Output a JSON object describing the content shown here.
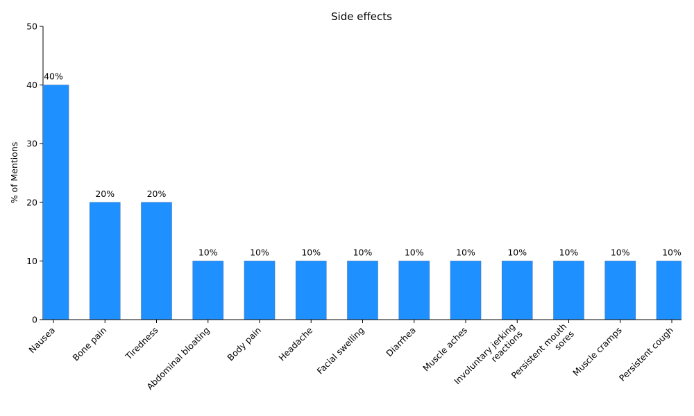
{
  "chart_data": {
    "type": "bar",
    "title": "Side effects",
    "xlabel": "",
    "ylabel": "% of Mentions",
    "ylim": [
      0,
      50
    ],
    "yticks": [
      0,
      10,
      20,
      30,
      40,
      50
    ],
    "grid": false,
    "bar_color": "#1e90ff",
    "categories": [
      [
        "Nausea"
      ],
      [
        "Bone pain"
      ],
      [
        "Tiredness"
      ],
      [
        "Abdominal bloating"
      ],
      [
        "Body pain"
      ],
      [
        "Headache"
      ],
      [
        "Facial swelling"
      ],
      [
        "Diarrhea"
      ],
      [
        "Muscle aches"
      ],
      [
        "Involuntary jerking",
        "reactions"
      ],
      [
        "Persistent mouth",
        "sores"
      ],
      [
        "Muscle cramps"
      ],
      [
        "Persistent cough"
      ]
    ],
    "values": [
      40,
      20,
      20,
      10,
      10,
      10,
      10,
      10,
      10,
      10,
      10,
      10,
      10
    ],
    "data_labels": [
      "40%",
      "20%",
      "20%",
      "10%",
      "10%",
      "10%",
      "10%",
      "10%",
      "10%",
      "10%",
      "10%",
      "10%",
      "10%"
    ]
  }
}
